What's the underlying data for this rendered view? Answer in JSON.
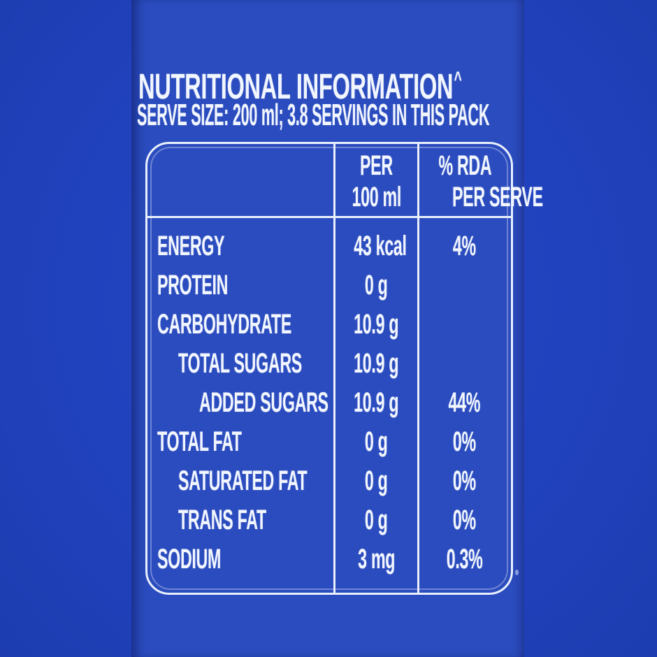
{
  "colors": {
    "outer_background": "#1f41bd",
    "label_background": "#2b4cbe",
    "text": "#f2f6fe",
    "table_border": "#e9f0fc"
  },
  "header": {
    "title": "NUTRITIONAL INFORMATION",
    "title_marker": "^",
    "subtitle": "SERVE SIZE: 200 ml; 3.8 SERVINGS IN THIS PACK"
  },
  "table": {
    "column_headers": [
      {
        "line1": "",
        "line2": ""
      },
      {
        "line1": "PER",
        "line2": "100 ml"
      },
      {
        "line1": "% RDA",
        "line2": "PER SERVE"
      }
    ],
    "rows": [
      {
        "label": "ENERGY",
        "indent": 0,
        "per_100ml": "43 kcal",
        "rda_per_serve": "4%"
      },
      {
        "label": "PROTEIN",
        "indent": 0,
        "per_100ml": "0 g",
        "rda_per_serve": ""
      },
      {
        "label": "CARBOHYDRATE",
        "indent": 0,
        "per_100ml": "10.9 g",
        "rda_per_serve": ""
      },
      {
        "label": "TOTAL SUGARS",
        "indent": 1,
        "per_100ml": "10.9 g",
        "rda_per_serve": ""
      },
      {
        "label": "ADDED SUGARS",
        "indent": 2,
        "per_100ml": "10.9 g",
        "rda_per_serve": "44%"
      },
      {
        "label": "TOTAL FAT",
        "indent": 0,
        "per_100ml": "0 g",
        "rda_per_serve": "0%"
      },
      {
        "label": "SATURATED FAT",
        "indent": 1,
        "per_100ml": "0 g",
        "rda_per_serve": "0%"
      },
      {
        "label": "TRANS FAT",
        "indent": 1,
        "per_100ml": "0 g",
        "rda_per_serve": "0%"
      },
      {
        "label": "SODIUM",
        "indent": 0,
        "per_100ml": "3 mg",
        "rda_per_serve": "0.3%"
      }
    ]
  }
}
